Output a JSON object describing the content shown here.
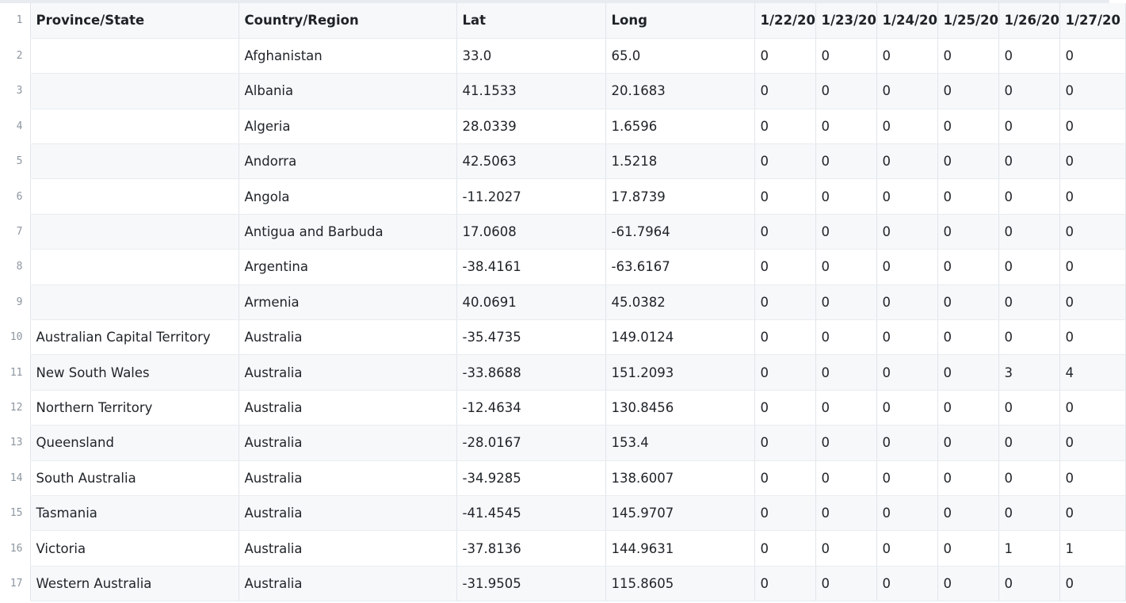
{
  "columns": [
    "Province/State",
    "Country/Region",
    "Lat",
    "Long",
    "1/22/20",
    "1/23/20",
    "1/24/20",
    "1/25/20",
    "1/26/20",
    "1/27/20"
  ],
  "line_numbers": [
    "1",
    "2",
    "3",
    "4",
    "5",
    "6",
    "7",
    "8",
    "9",
    "10",
    "11",
    "12",
    "13",
    "14",
    "15",
    "16",
    "17"
  ],
  "rows": [
    [
      "",
      "Afghanistan",
      "33.0",
      "65.0",
      "0",
      "0",
      "0",
      "0",
      "0",
      "0"
    ],
    [
      "",
      "Albania",
      "41.1533",
      "20.1683",
      "0",
      "0",
      "0",
      "0",
      "0",
      "0"
    ],
    [
      "",
      "Algeria",
      "28.0339",
      "1.6596",
      "0",
      "0",
      "0",
      "0",
      "0",
      "0"
    ],
    [
      "",
      "Andorra",
      "42.5063",
      "1.5218",
      "0",
      "0",
      "0",
      "0",
      "0",
      "0"
    ],
    [
      "",
      "Angola",
      "-11.2027",
      "17.8739",
      "0",
      "0",
      "0",
      "0",
      "0",
      "0"
    ],
    [
      "",
      "Antigua and Barbuda",
      "17.0608",
      "-61.7964",
      "0",
      "0",
      "0",
      "0",
      "0",
      "0"
    ],
    [
      "",
      "Argentina",
      "-38.4161",
      "-63.6167",
      "0",
      "0",
      "0",
      "0",
      "0",
      "0"
    ],
    [
      "",
      "Armenia",
      "40.0691",
      "45.0382",
      "0",
      "0",
      "0",
      "0",
      "0",
      "0"
    ],
    [
      "Australian Capital Territory",
      "Australia",
      "-35.4735",
      "149.0124",
      "0",
      "0",
      "0",
      "0",
      "0",
      "0"
    ],
    [
      "New South Wales",
      "Australia",
      "-33.8688",
      "151.2093",
      "0",
      "0",
      "0",
      "0",
      "3",
      "4"
    ],
    [
      "Northern Territory",
      "Australia",
      "-12.4634",
      "130.8456",
      "0",
      "0",
      "0",
      "0",
      "0",
      "0"
    ],
    [
      "Queensland",
      "Australia",
      "-28.0167",
      "153.4",
      "0",
      "0",
      "0",
      "0",
      "0",
      "0"
    ],
    [
      "South Australia",
      "Australia",
      "-34.9285",
      "138.6007",
      "0",
      "0",
      "0",
      "0",
      "0",
      "0"
    ],
    [
      "Tasmania",
      "Australia",
      "-41.4545",
      "145.9707",
      "0",
      "0",
      "0",
      "0",
      "0",
      "0"
    ],
    [
      "Victoria",
      "Australia",
      "-37.8136",
      "144.9631",
      "0",
      "0",
      "0",
      "0",
      "1",
      "1"
    ],
    [
      "Western Australia",
      "Australia",
      "-31.9505",
      "115.8605",
      "0",
      "0",
      "0",
      "0",
      "0",
      "0"
    ]
  ]
}
